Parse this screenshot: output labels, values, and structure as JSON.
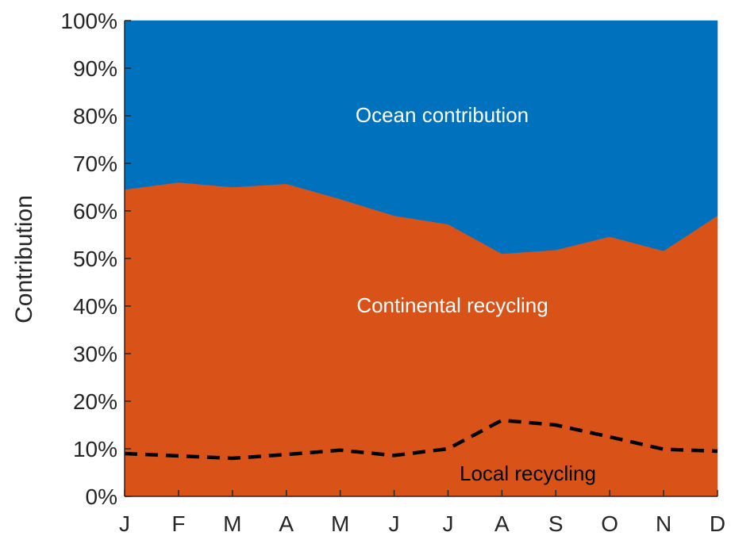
{
  "chart_data": {
    "type": "area",
    "stacked": true,
    "categories": [
      "J",
      "F",
      "M",
      "A",
      "M",
      "J",
      "J",
      "A",
      "S",
      "O",
      "N",
      "D"
    ],
    "ylabel": "Contribution",
    "ylim": [
      0,
      100
    ],
    "yticks": [
      "0%",
      "10%",
      "20%",
      "30%",
      "40%",
      "50%",
      "60%",
      "70%",
      "80%",
      "90%",
      "100%"
    ],
    "grid": false,
    "series": [
      {
        "values": [
          64.5,
          66,
          65,
          65.7,
          62.5,
          59,
          57.2,
          51,
          51.8,
          54.6,
          51.6,
          59
        ],
        "color": "#d95319"
      },
      {
        "values": [
          35.5,
          34,
          35,
          34.3,
          37.5,
          41,
          42.8,
          49,
          48.2,
          45.4,
          48.4,
          41
        ],
        "color": "#0072bd"
      }
    ],
    "line_series": [
      {
        "values": [
          9,
          8.5,
          8,
          8.8,
          9.7,
          8.6,
          10,
          16,
          15,
          12.5,
          9.9,
          9.5
        ],
        "color": "#000000",
        "style": "dashed"
      }
    ],
    "annotations": {
      "ocean": "Ocean contribution",
      "continental": "Continental recycling",
      "local": "Local recycling"
    }
  }
}
